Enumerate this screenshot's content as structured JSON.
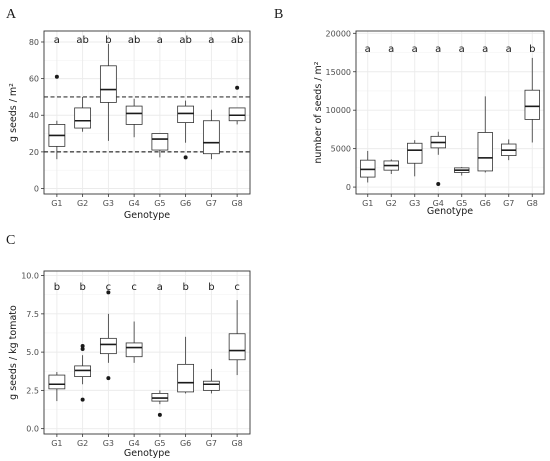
{
  "chart_data": [
    {
      "type": "box",
      "panel": "A",
      "xlabel": "Genotype",
      "ylabel": "g seeds / m²",
      "categories": [
        "G1",
        "G2",
        "G3",
        "G4",
        "G5",
        "G6",
        "G7",
        "G8"
      ],
      "yticks": [
        0,
        20,
        40,
        60,
        80
      ],
      "ylim": [
        -3,
        86
      ],
      "grid": true,
      "significance": [
        "a",
        "ab",
        "b",
        "ab",
        "a",
        "ab",
        "a",
        "ab"
      ],
      "reference_lines": [
        20,
        50
      ],
      "boxes": [
        {
          "whislo": 16,
          "q1": 23,
          "med": 29,
          "q3": 35,
          "whishi": 37,
          "fliers": [
            61
          ]
        },
        {
          "whislo": 31,
          "q1": 33,
          "med": 37,
          "q3": 44,
          "whishi": 50,
          "fliers": []
        },
        {
          "whislo": 26,
          "q1": 47,
          "med": 54,
          "q3": 67,
          "whishi": 79,
          "fliers": []
        },
        {
          "whislo": 28,
          "q1": 35,
          "med": 41,
          "q3": 45,
          "whishi": 49,
          "fliers": []
        },
        {
          "whislo": 17,
          "q1": 21,
          "med": 27,
          "q3": 30,
          "whishi": 30,
          "fliers": []
        },
        {
          "whislo": 25,
          "q1": 36,
          "med": 41,
          "q3": 45,
          "whishi": 48,
          "fliers": [
            17
          ]
        },
        {
          "whislo": 16,
          "q1": 19,
          "med": 25,
          "q3": 37,
          "whishi": 43,
          "fliers": []
        },
        {
          "whislo": 35,
          "q1": 37,
          "med": 40,
          "q3": 44,
          "whishi": 44,
          "fliers": [
            55
          ]
        }
      ]
    },
    {
      "type": "box",
      "panel": "B",
      "xlabel": "Genotype",
      "ylabel": "number of seeds / m²",
      "categories": [
        "G1",
        "G2",
        "G3",
        "G4",
        "G5",
        "G6",
        "G7",
        "G8"
      ],
      "yticks": [
        0,
        5000,
        10000,
        15000,
        20000
      ],
      "ytick_labels": [
        "0",
        "5000",
        "10000",
        "15000",
        "20000"
      ],
      "ylim": [
        -900,
        20300
      ],
      "grid": true,
      "significance": [
        "a",
        "a",
        "a",
        "a",
        "a",
        "a",
        "a",
        "b"
      ],
      "boxes": [
        {
          "whislo": 600,
          "q1": 1300,
          "med": 2300,
          "q3": 3500,
          "whishi": 4700,
          "fliers": []
        },
        {
          "whislo": 1700,
          "q1": 2200,
          "med": 2800,
          "q3": 3400,
          "whishi": 3600,
          "fliers": []
        },
        {
          "whislo": 1400,
          "q1": 3100,
          "med": 4800,
          "q3": 5700,
          "whishi": 6100,
          "fliers": []
        },
        {
          "whislo": 4200,
          "q1": 5100,
          "med": 5800,
          "q3": 6600,
          "whishi": 7200,
          "fliers": [
            400
          ]
        },
        {
          "whislo": 1500,
          "q1": 1900,
          "med": 2200,
          "q3": 2500,
          "whishi": 2600,
          "fliers": []
        },
        {
          "whislo": 1900,
          "q1": 2100,
          "med": 3800,
          "q3": 7100,
          "whishi": 11800,
          "fliers": []
        },
        {
          "whislo": 3500,
          "q1": 4100,
          "med": 4800,
          "q3": 5600,
          "whishi": 6200,
          "fliers": []
        },
        {
          "whislo": 5800,
          "q1": 8800,
          "med": 10500,
          "q3": 12600,
          "whishi": 16800,
          "fliers": []
        }
      ]
    },
    {
      "type": "box",
      "panel": "C",
      "xlabel": "Genotype",
      "ylabel": "g seeds / kg tomato",
      "categories": [
        "G1",
        "G2",
        "G3",
        "G4",
        "G5",
        "G6",
        "G7",
        "G8"
      ],
      "yticks": [
        0,
        2.5,
        5,
        7.5,
        10
      ],
      "ytick_labels": [
        "0.0",
        "2.5",
        "5.0",
        "7.5",
        "10.0"
      ],
      "ylim": [
        -0.35,
        10.3
      ],
      "grid": true,
      "significance": [
        "b",
        "b",
        "c",
        "c",
        "a",
        "b",
        "b",
        "c"
      ],
      "boxes": [
        {
          "whislo": 1.8,
          "q1": 2.6,
          "med": 2.9,
          "q3": 3.5,
          "whishi": 3.7,
          "fliers": []
        },
        {
          "whislo": 2.9,
          "q1": 3.4,
          "med": 3.8,
          "q3": 4.1,
          "whishi": 4.8,
          "fliers": [
            1.9,
            5.2,
            5.4
          ]
        },
        {
          "whislo": 4.3,
          "q1": 4.9,
          "med": 5.5,
          "q3": 5.9,
          "whishi": 7.5,
          "fliers": [
            3.3,
            8.9
          ]
        },
        {
          "whislo": 4.3,
          "q1": 4.7,
          "med": 5.3,
          "q3": 5.6,
          "whishi": 7.0,
          "fliers": []
        },
        {
          "whislo": 1.6,
          "q1": 1.8,
          "med": 2.0,
          "q3": 2.3,
          "whishi": 2.5,
          "fliers": [
            0.9
          ]
        },
        {
          "whislo": 2.3,
          "q1": 2.4,
          "med": 3.0,
          "q3": 4.2,
          "whishi": 6.0,
          "fliers": []
        },
        {
          "whislo": 2.3,
          "q1": 2.5,
          "med": 2.9,
          "q3": 3.1,
          "whishi": 3.9,
          "fliers": []
        },
        {
          "whislo": 3.5,
          "q1": 4.5,
          "med": 5.1,
          "q3": 6.2,
          "whishi": 8.4,
          "fliers": []
        }
      ]
    }
  ]
}
